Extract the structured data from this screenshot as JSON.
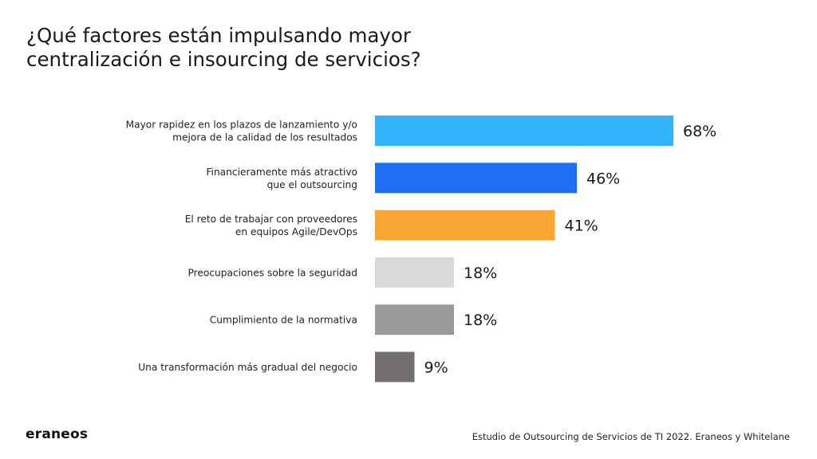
{
  "title": "¿Qué factores están impulsando mayor centralización e insourcing de servicios?",
  "logo_text": "eraneos",
  "source": "Estudio de Outsourcing de Servicios de TI 2022. Eraneos y Whitelane",
  "chart_data": {
    "type": "bar",
    "orientation": "horizontal",
    "title": "¿Qué factores están impulsando mayor centralización e insourcing de servicios?",
    "unit": "%",
    "xlim": [
      0,
      100
    ],
    "grid": false,
    "legend": "none",
    "categories": [
      [
        "Mayor rapidez en los plazos de lanzamiento y/o",
        "mejora de la calidad de los resultados"
      ],
      [
        "Financieramente más atractivo",
        "que el outsourcing"
      ],
      [
        "El reto de trabajar con proveedores",
        "en equipos Agile/DevOps"
      ],
      [
        "Preocupaciones sobre la seguridad"
      ],
      [
        "Cumplimiento de la normativa"
      ],
      [
        "Una transformación más gradual del negocio"
      ]
    ],
    "values": [
      68,
      46,
      41,
      18,
      18,
      9
    ],
    "value_labels": [
      "68%",
      "46%",
      "41%",
      "18%",
      "18%",
      "9%"
    ],
    "colors": [
      "#33b4fa",
      "#1f6ef2",
      "#f7a634",
      "#d9d9d9",
      "#999999",
      "#726e6e"
    ]
  }
}
